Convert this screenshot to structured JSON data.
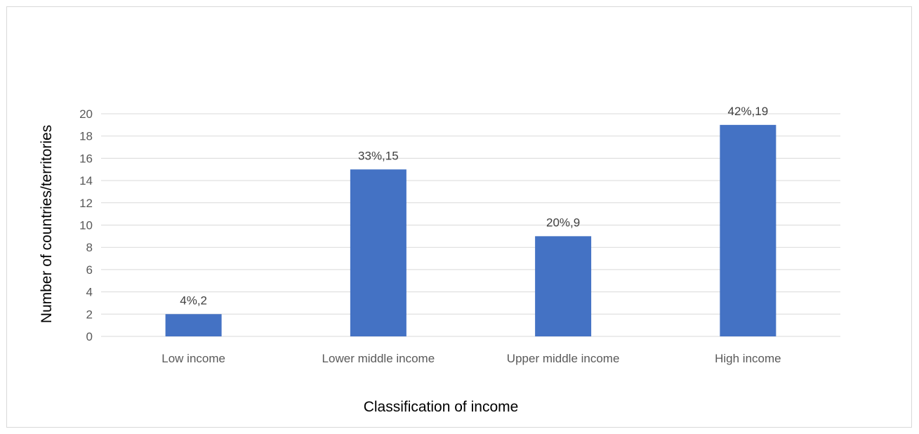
{
  "chart_data": {
    "type": "bar",
    "categories": [
      "Low income",
      "Lower middle income",
      "Upper middle income",
      "High income"
    ],
    "values": [
      2,
      15,
      9,
      19
    ],
    "data_labels": [
      "4%,2",
      "33%,15",
      "20%,9",
      "42%,19"
    ],
    "title": "",
    "xlabel": "Classification of income",
    "ylabel": "Number of countries/territories",
    "ylim": [
      0,
      20
    ],
    "yticks": [
      0,
      2,
      4,
      6,
      8,
      10,
      12,
      14,
      16,
      18,
      20
    ],
    "grid": true,
    "legend": "none",
    "colors": {
      "bar": "#4472c4",
      "grid": "#d9d9d9",
      "frame": "#d9d9d9"
    }
  }
}
